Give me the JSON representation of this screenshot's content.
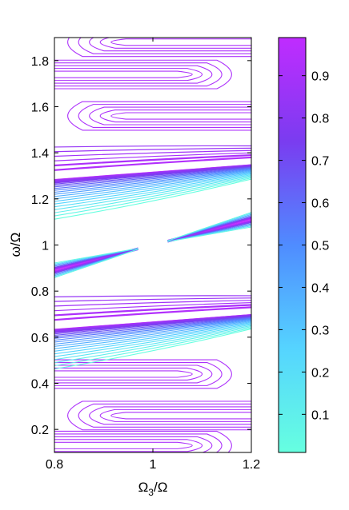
{
  "chart_data": {
    "type": "contour",
    "xlabel": "Ω3/Ω",
    "ylabel": "ω/Ω",
    "xlim": [
      0.8,
      1.2
    ],
    "ylim": [
      0.1,
      1.9
    ],
    "x_ticks": [
      {
        "value": 0.8,
        "label": "0.8"
      },
      {
        "value": 1.0,
        "label": "1"
      },
      {
        "value": 1.2,
        "label": "1.2"
      }
    ],
    "y_ticks": [
      {
        "value": 0.2,
        "label": "0.2"
      },
      {
        "value": 0.4,
        "label": "0.4"
      },
      {
        "value": 0.6,
        "label": "0.6"
      },
      {
        "value": 0.8,
        "label": "0.8"
      },
      {
        "value": 1.0,
        "label": "1"
      },
      {
        "value": 1.2,
        "label": "1.2"
      },
      {
        "value": 1.4,
        "label": "1.4"
      },
      {
        "value": 1.6,
        "label": "1.6"
      },
      {
        "value": 1.8,
        "label": "1.8"
      }
    ],
    "colorbar": {
      "range": [
        0.01,
        0.99
      ],
      "colors": [
        "#66ffe0",
        "#55d4ff",
        "#4f8cff",
        "#7a3cf0",
        "#c02cff"
      ],
      "ticks": [
        {
          "value": 0.1,
          "label": "0.1"
        },
        {
          "value": 0.2,
          "label": "0.2"
        },
        {
          "value": 0.3,
          "label": "0.3"
        },
        {
          "value": 0.4,
          "label": "0.4"
        },
        {
          "value": 0.5,
          "label": "0.5"
        },
        {
          "value": 0.6,
          "label": "0.6"
        },
        {
          "value": 0.7,
          "label": "0.7"
        },
        {
          "value": 0.8,
          "label": "0.8"
        },
        {
          "value": 0.9,
          "label": "0.9"
        }
      ]
    },
    "upper_band": {
      "edge_y_at_xmin": 1.29,
      "edge_y_at_xmax": 1.35,
      "extent_at_xmin": 0.17,
      "extent_at_xmax": 0.06,
      "n_levels": 22
    },
    "lower_band": {
      "edge_y_at_xmin": 0.64,
      "edge_y_at_xmax": 0.7,
      "extent_at_xmin": 0.17,
      "extent_at_xmax": 0.06,
      "n_levels": 22
    },
    "diagonal": {
      "y_at_xmin": 0.89,
      "y_at_xmax": 1.11,
      "gap_x": [
        0.97,
        1.03
      ]
    },
    "side_lobes": [
      {
        "y": 1.88,
        "open_side": "right"
      },
      {
        "y": 1.74,
        "open_side": "left"
      },
      {
        "y": 1.56,
        "open_side": "right"
      },
      {
        "y": 0.44,
        "open_side": "left"
      },
      {
        "y": 0.26,
        "open_side": "right"
      },
      {
        "y": 0.13,
        "open_side": "left"
      }
    ]
  }
}
